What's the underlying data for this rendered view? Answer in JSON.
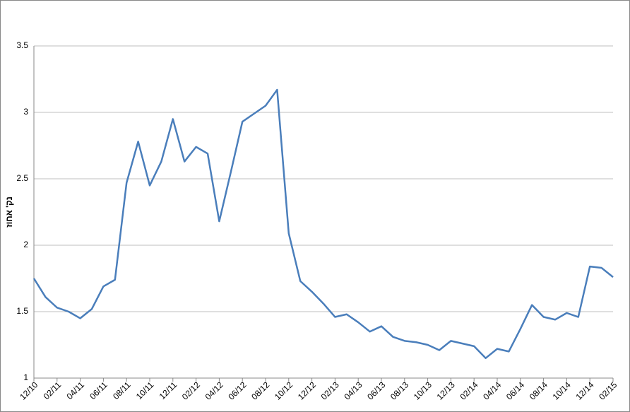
{
  "chart_data": {
    "type": "line",
    "y_label": "נק' אחוז",
    "categories": [
      "12/10",
      null,
      "02/11",
      null,
      "04/11",
      null,
      "06/11",
      null,
      "08/11",
      null,
      "10/11",
      null,
      "12/11",
      null,
      "02/12",
      null,
      "04/12",
      null,
      "06/12",
      null,
      "08/12",
      null,
      "10/12",
      null,
      "12/12",
      null,
      "02/13",
      null,
      "04/13",
      null,
      "06/13",
      null,
      "08/13",
      null,
      "10/13",
      null,
      "12/13",
      null,
      "02/14",
      null,
      "04/14",
      null,
      "06/14",
      null,
      "08/14",
      null,
      "10/14",
      null,
      "12/14",
      null,
      "02/15"
    ],
    "series": [
      {
        "color": "#4a7ebb",
        "values": [
          1.75,
          1.61,
          1.53,
          1.5,
          1.45,
          1.52,
          1.69,
          1.74,
          2.47,
          2.78,
          2.45,
          2.63,
          2.95,
          2.63,
          2.74,
          2.69,
          2.18,
          2.55,
          2.93,
          2.99,
          3.05,
          3.17,
          2.09,
          1.73,
          1.65,
          1.56,
          1.46,
          1.48,
          1.42,
          1.35,
          1.39,
          1.31,
          1.28,
          1.27,
          1.25,
          1.21,
          1.28,
          1.26,
          1.24,
          1.15,
          1.22,
          1.2,
          1.37,
          1.55,
          1.46,
          1.44,
          1.49,
          1.46,
          1.84,
          1.83,
          1.76
        ]
      }
    ],
    "ylim": [
      1,
      3.5
    ],
    "yticks": [
      1,
      1.5,
      2,
      2.5,
      3,
      3.5
    ],
    "grid": true
  }
}
